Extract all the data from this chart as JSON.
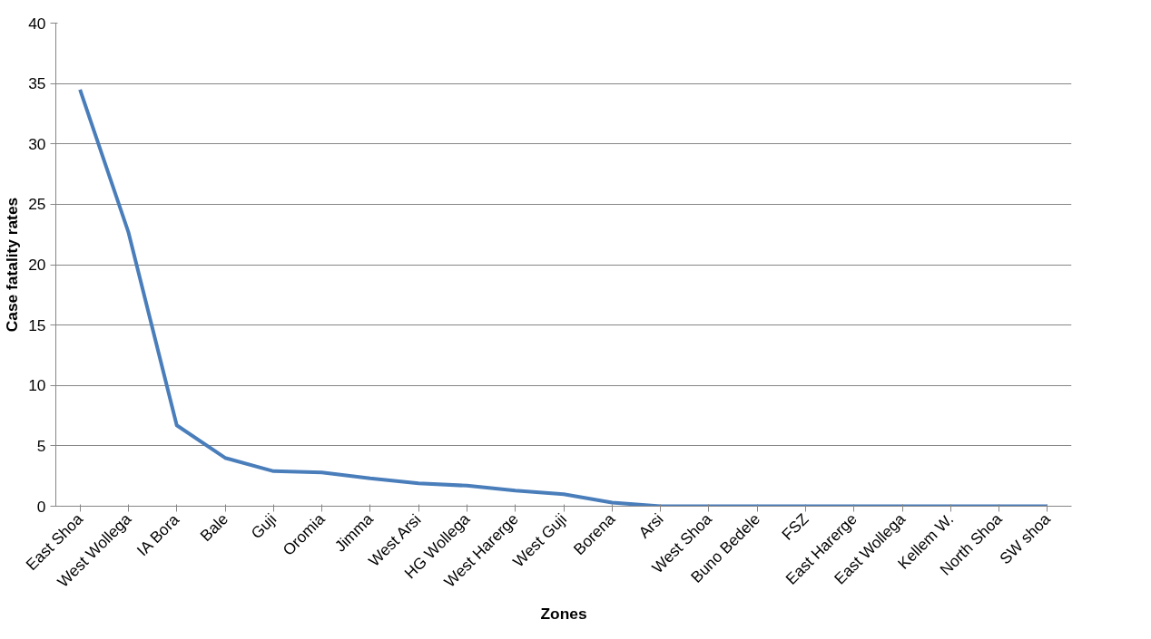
{
  "chart_data": {
    "type": "line",
    "xlabel": "Zones",
    "ylabel": "Case fatality rates",
    "categories": [
      "East Shoa",
      "West Wollega",
      "IA Bora",
      "Bale",
      "Guji",
      "Oromia",
      "Jimma",
      "West Arsi",
      "HG Wollega",
      "West Harerge",
      "West Guji",
      "Borena",
      "Arsi",
      "West Shoa",
      "Buno Bedele",
      "FSZ",
      "East Harerge",
      "East Wollega",
      "Kellem W.",
      "North Shoa",
      "SW shoa"
    ],
    "series": [
      {
        "color": "#4a7ebb",
        "values": [
          34.5,
          22.7,
          6.7,
          4.0,
          2.9,
          2.8,
          2.3,
          1.9,
          1.7,
          1.3,
          1.0,
          0.3,
          0,
          0,
          0,
          0,
          0,
          0,
          0,
          0,
          0
        ]
      }
    ],
    "ylim": [
      0,
      40
    ],
    "yticks": [
      0,
      5,
      10,
      15,
      20,
      25,
      30,
      35,
      40
    ],
    "grid": "y",
    "marker": "none",
    "line_style": "solid"
  }
}
